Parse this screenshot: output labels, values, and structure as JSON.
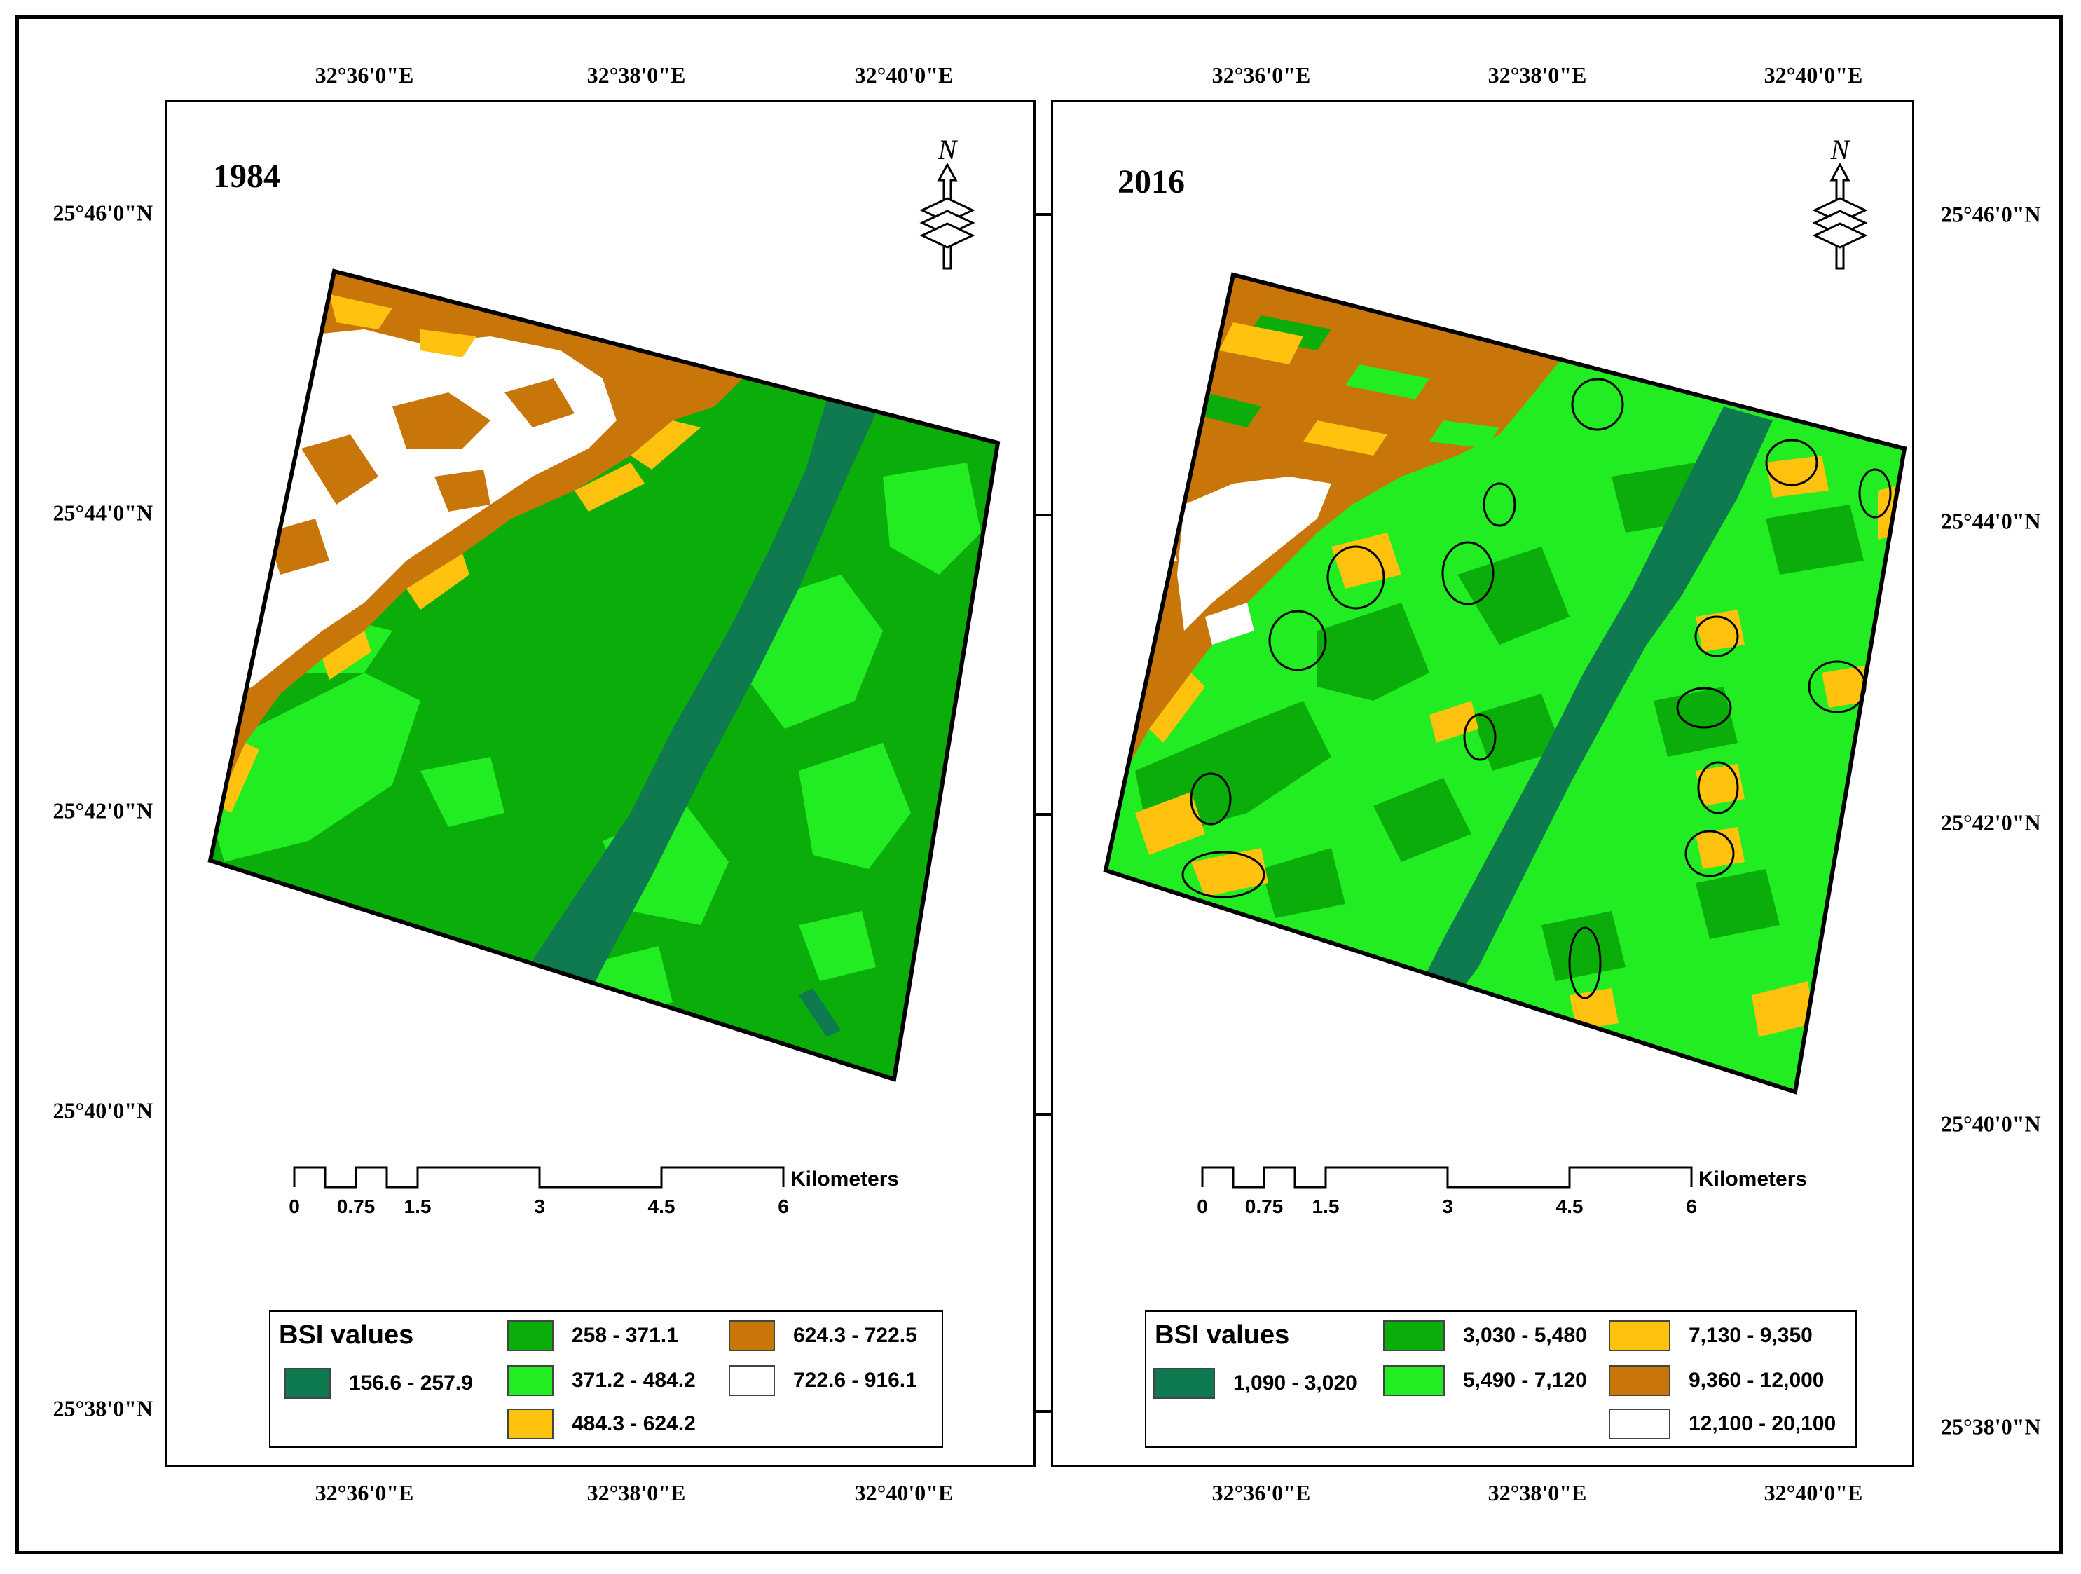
{
  "maps": [
    {
      "id": "1984",
      "year_label": "1984",
      "top_lon_labels": [
        "32°36'0\"E",
        "32°38'0\"E",
        "32°40'0\"E"
      ],
      "bottom_lon_labels": [
        "32°36'0\"E",
        "32°38'0\"E",
        "32°40'0\"E"
      ],
      "left_lat_labels": [
        "25°46'0\"N",
        "25°44'0\"N",
        "25°42'0\"N",
        "25°40'0\"N",
        "25°38'0\"N"
      ],
      "north_arrow_label": "N",
      "legend": {
        "title": "BSI values",
        "items": [
          {
            "label": "156.6 - 257.9",
            "color": "#0f7a50"
          },
          {
            "label": "258 - 371.1",
            "color": "#0aad0a"
          },
          {
            "label": "371.2 - 484.2",
            "color": "#22ec22"
          },
          {
            "label": "484.3 - 624.2",
            "color": "#ffc20e"
          },
          {
            "label": "624.3 - 722.5",
            "color": "#c8760a"
          },
          {
            "label": "722.6 - 916.1",
            "color": "#ffffff"
          }
        ]
      },
      "scale_bar": {
        "ticks": [
          "0",
          "0.75",
          "1.5",
          "3",
          "4.5",
          "6"
        ],
        "unit": "Kilometers"
      }
    },
    {
      "id": "2016",
      "year_label": "2016",
      "top_lon_labels": [
        "32°36'0\"E",
        "32°38'0\"E",
        "32°40'0\"E"
      ],
      "bottom_lon_labels": [
        "32°36'0\"E",
        "32°38'0\"E",
        "32°40'0\"E"
      ],
      "right_lat_labels": [
        "25°46'0\"N",
        "25°44'0\"N",
        "25°42'0\"N",
        "25°40'0\"N",
        "25°38'0\"N"
      ],
      "north_arrow_label": "N",
      "legend": {
        "title": "BSI values",
        "items": [
          {
            "label": "1,090 - 3,020",
            "color": "#0f7a50"
          },
          {
            "label": "3,030 - 5,480",
            "color": "#0aad0a"
          },
          {
            "label": "5,490 - 7,120",
            "color": "#22ec22"
          },
          {
            "label": "7,130 - 9,350",
            "color": "#ffc20e"
          },
          {
            "label": "9,360 - 12,000",
            "color": "#c8760a"
          },
          {
            "label": "12,100 - 20,100",
            "color": "#ffffff"
          }
        ]
      },
      "scale_bar": {
        "ticks": [
          "0",
          "0.75",
          "1.5",
          "3",
          "4.5",
          "6"
        ],
        "unit": "Kilometers"
      }
    }
  ]
}
